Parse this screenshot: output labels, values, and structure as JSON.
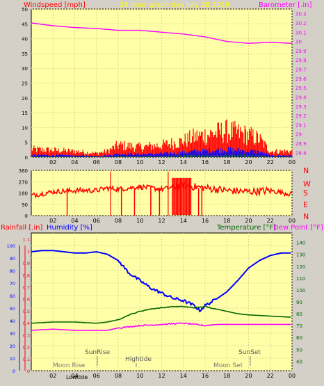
{
  "header": {
    "left": "Windspeed [mph]",
    "center": "24 hour graph day   July 28 2019",
    "right": "Barometer [.in]"
  },
  "middle": {
    "compass": [
      "N",
      "W",
      "S",
      "E",
      "N"
    ]
  },
  "bottom_header": {
    "rainfall": "Rainfall [.in]",
    "humidity": "Humidity [%]",
    "temperature": "Temperature [°F]",
    "dewpoint": "Dew Point [°F]"
  },
  "annotations": {
    "sunrise": "SunRise",
    "sunset": "SunSet",
    "hightide": "Hightide",
    "moonrise": "Moon Rise",
    "moonset": "Moon Set",
    "lowtide": "Lowtide"
  },
  "colors": {
    "background": "#d4d0c8",
    "plot": "#ffffa8",
    "windspeed": "#ff0000",
    "gust": "#0000ff",
    "avg": "#008000",
    "barometer": "#ff00ff",
    "humidity": "#0000ff",
    "temperature": "#006600",
    "dewpoint": "#ff00ff"
  },
  "chart_data": [
    {
      "type": "line",
      "name": "wind-barometer",
      "x_ticks": [
        "02",
        "04",
        "06",
        "08",
        "10",
        "12",
        "14",
        "16",
        "18",
        "20",
        "22",
        "00"
      ],
      "y_left_ticks": [
        0,
        5,
        10,
        15,
        20,
        25,
        30,
        35,
        40,
        45,
        50
      ],
      "y_left_range": [
        0,
        50
      ],
      "y_right_ticks": [
        "28.8",
        "28.9",
        "29",
        "29.1",
        "29.2",
        "29.3",
        "29.4",
        "29.5",
        "29.6",
        "29.7",
        "29.8",
        "29.9",
        "30",
        "30.1",
        "30.2",
        "30.3"
      ],
      "y_right_range": [
        28.75,
        30.35
      ],
      "barometer_hours": [
        0,
        2,
        4,
        6,
        8,
        10,
        12,
        14,
        16,
        18,
        20,
        22,
        24
      ],
      "barometer_values": [
        30.2,
        30.17,
        30.15,
        30.14,
        30.12,
        30.12,
        30.1,
        30.08,
        30.05,
        30.0,
        29.98,
        29.99,
        29.98
      ],
      "wind_envelope_hours": [
        0,
        4,
        6,
        7,
        8,
        10,
        12,
        14,
        15,
        16,
        17,
        18,
        19,
        20,
        21,
        22,
        24
      ],
      "wind_envelope_max": [
        4,
        3,
        2,
        3,
        6,
        5,
        6,
        8,
        10,
        11,
        12,
        13,
        12,
        11,
        9,
        3,
        3
      ]
    },
    {
      "type": "scatter",
      "name": "wind-direction",
      "x_ticks": [
        "02",
        "04",
        "06",
        "08",
        "10",
        "12",
        "14",
        "16",
        "18",
        "20",
        "22",
        "00"
      ],
      "y_ticks": [
        0,
        90,
        180,
        270,
        360
      ],
      "y_range": [
        0,
        360
      ],
      "direction_hours": [
        0,
        2,
        4,
        6,
        7,
        8,
        10,
        12,
        14,
        16,
        18,
        20,
        22,
        24
      ],
      "direction_values": [
        160,
        190,
        200,
        200,
        220,
        210,
        230,
        210,
        240,
        220,
        200,
        190,
        200,
        170
      ]
    },
    {
      "type": "line",
      "name": "humidity-temperature",
      "x_ticks": [
        "02",
        "04",
        "06",
        "08",
        "10",
        "12",
        "14",
        "16",
        "18",
        "20",
        "22",
        "00"
      ],
      "y_humidity_ticks": [
        0,
        10,
        20,
        30,
        40,
        50,
        60,
        70,
        80,
        90,
        100
      ],
      "y_rain_ticks": [
        "0",
        "0.1",
        "0.2",
        "0.3",
        "0.4",
        "0.5",
        "0.6",
        "0.7",
        "0.8",
        "0.9",
        "1",
        "1.1"
      ],
      "y_temp_ticks": [
        40,
        50,
        60,
        70,
        80,
        90,
        100,
        110,
        120,
        130,
        140
      ],
      "y_temp_range": [
        32,
        148
      ],
      "series": [
        {
          "name": "Humidity",
          "hours": [
            0,
            1,
            2,
            4,
            5,
            6,
            7,
            8,
            9,
            10,
            11,
            12,
            13,
            14,
            15,
            15.5,
            16,
            17,
            18,
            19,
            20,
            21,
            22,
            23,
            24
          ],
          "values": [
            95,
            96,
            96,
            94,
            94,
            95,
            93,
            88,
            78,
            72,
            66,
            62,
            58,
            56,
            52,
            48,
            52,
            57,
            63,
            72,
            82,
            88,
            92,
            94,
            94
          ]
        },
        {
          "name": "Temperature",
          "hours": [
            0,
            2,
            4,
            6,
            7,
            8,
            9,
            10,
            11,
            12,
            13,
            14,
            15,
            16,
            17,
            18,
            19,
            20,
            22,
            24
          ],
          "values": [
            72,
            73,
            73,
            72,
            73,
            75,
            79,
            82,
            84,
            85,
            86,
            86,
            85,
            86,
            84,
            82,
            80,
            79,
            78,
            77
          ]
        },
        {
          "name": "Dew Point",
          "hours": [
            0,
            2,
            4,
            6,
            7,
            8,
            10,
            12,
            14,
            15,
            16,
            17,
            18,
            20,
            22,
            24
          ],
          "values": [
            66,
            67,
            66,
            66,
            66,
            68,
            70,
            71,
            72,
            71,
            70,
            71,
            71,
            71,
            71,
            71
          ]
        }
      ]
    }
  ]
}
